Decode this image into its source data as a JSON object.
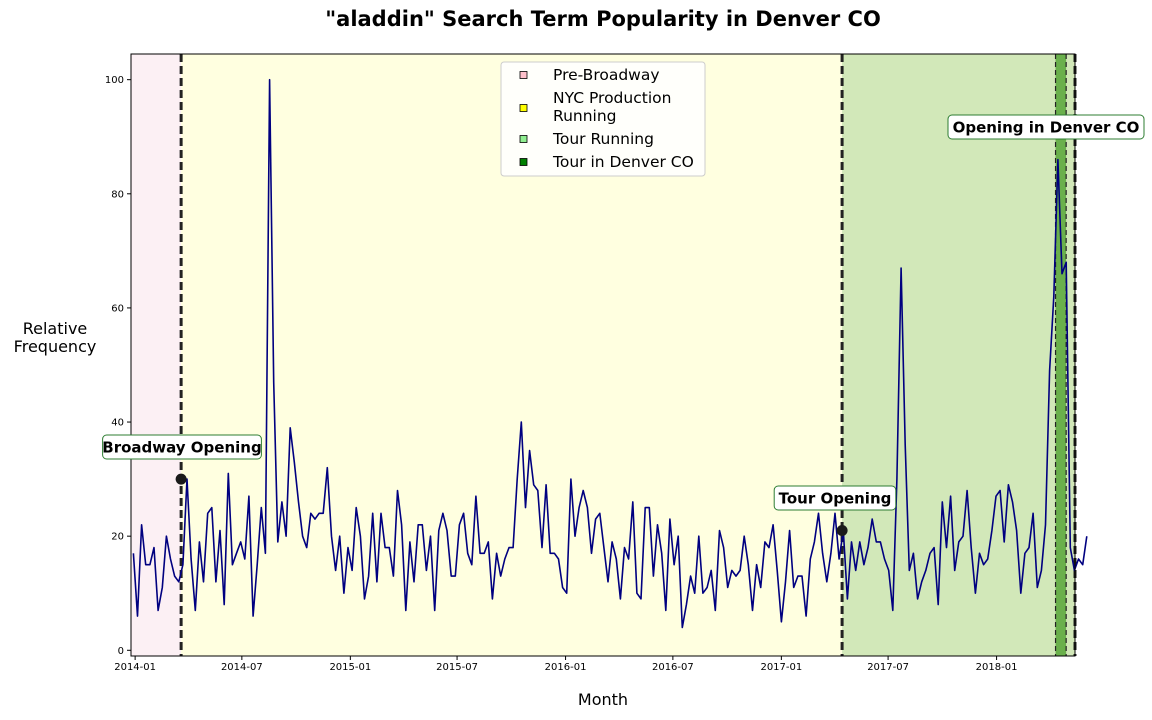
{
  "chart_data": {
    "type": "line",
    "title": "\"aladdin\" Search Term Popularity in Denver CO",
    "xlabel": "Month",
    "ylabel": "Relative\nFrequency",
    "xlim": [
      "2013-12-25",
      "2018-05-14"
    ],
    "ylim": [
      -1,
      104.5
    ],
    "x_ticks": [
      "2014-01",
      "2014-07",
      "2015-01",
      "2015-07",
      "2016-01",
      "2016-07",
      "2017-01",
      "2017-07",
      "2018-01"
    ],
    "y_ticks": [
      0,
      20,
      40,
      60,
      80,
      100
    ],
    "x_start": "2013-12-29",
    "x_step_days": 7,
    "series": [
      {
        "color": "#000080",
        "values": [
          17,
          6,
          22,
          15,
          15,
          18,
          7,
          11,
          20,
          16,
          13,
          12,
          15,
          30,
          16,
          7,
          19,
          12,
          24,
          25,
          12,
          21,
          8,
          31,
          15,
          17,
          19,
          16,
          27,
          6,
          15,
          25,
          17,
          100,
          47,
          19,
          26,
          20,
          39,
          33,
          26,
          20,
          18,
          24,
          23,
          24,
          24,
          32,
          20,
          14,
          20,
          10,
          18,
          14,
          25,
          20,
          9,
          13,
          24,
          12,
          24,
          18,
          18,
          13,
          28,
          22,
          7,
          19,
          12,
          22,
          22,
          14,
          20,
          7,
          21,
          24,
          21,
          13,
          13,
          22,
          24,
          17,
          15,
          27,
          17,
          17,
          19,
          9,
          17,
          13,
          16,
          18,
          18,
          30,
          40,
          25,
          35,
          29,
          28,
          18,
          29,
          17,
          17,
          16,
          11,
          10,
          30,
          20,
          25,
          28,
          25,
          17,
          23,
          24,
          18,
          12,
          19,
          16,
          9,
          18,
          16,
          26,
          10,
          9,
          25,
          25,
          13,
          22,
          17,
          7,
          23,
          15,
          20,
          4,
          8,
          13,
          10,
          20,
          10,
          11,
          14,
          7,
          21,
          18,
          11,
          14,
          13,
          14,
          20,
          15,
          7,
          15,
          11,
          19,
          18,
          22,
          14,
          5,
          12,
          21,
          11,
          13,
          13,
          6,
          16,
          19,
          24,
          17,
          12,
          17,
          24,
          16,
          21,
          9,
          19,
          14,
          19,
          15,
          18,
          23,
          19,
          19,
          16,
          14,
          7,
          30,
          67,
          36,
          14,
          17,
          9,
          12,
          14,
          17,
          18,
          8,
          26,
          18,
          27,
          14,
          19,
          20,
          28,
          18,
          10,
          17,
          15,
          16,
          21,
          27,
          28,
          19,
          29,
          26,
          21,
          10,
          17,
          18,
          24,
          11,
          14,
          22,
          49,
          62,
          86,
          66,
          68,
          18,
          14,
          16,
          15,
          20
        ]
      }
    ],
    "background_regions": [
      {
        "label": "Pre-Broadway",
        "start": "2013-12-25",
        "end": "2014-03-20",
        "color": "#fcf0f4",
        "legend_color": "#ffc0cb"
      },
      {
        "label": "NYC Production Running",
        "start": "2014-03-20",
        "end": "2017-04-14",
        "color": "#ffffe0",
        "legend_color": "#ffff00"
      },
      {
        "label": "Tour Running",
        "start": "2017-04-14",
        "end": "2018-05-14",
        "color": "#d2e8b9",
        "legend_color": "#90ee90"
      },
      {
        "label": "Tour in Denver CO",
        "start": "2018-04-11",
        "end": "2018-04-29",
        "color": "#6ab04c",
        "legend_color": "#008000"
      }
    ],
    "vlines": [
      {
        "date": "2014-03-20",
        "style": "thick-dashed"
      },
      {
        "date": "2017-04-14",
        "style": "thick-dashed"
      },
      {
        "date": "2018-04-11",
        "style": "thin-dashed"
      },
      {
        "date": "2018-04-29",
        "style": "thin-dashed"
      },
      {
        "date": "2018-05-14",
        "style": "thick-dashed"
      }
    ],
    "annotations": [
      {
        "text": "Broadway Opening",
        "date": "2014-03-20",
        "value": 30,
        "marker": true
      },
      {
        "text": "Tour Opening",
        "date": "2017-04-14",
        "value": 21,
        "marker": true
      },
      {
        "text": "Opening in Denver CO",
        "date": "2018-04-11",
        "value": 92,
        "marker": false
      }
    ],
    "legend": {
      "placement": "top-center",
      "entries": [
        "Pre-Broadway",
        "NYC Production\nRunning",
        "Tour Running",
        "Tour in Denver CO"
      ]
    },
    "grid": false
  }
}
